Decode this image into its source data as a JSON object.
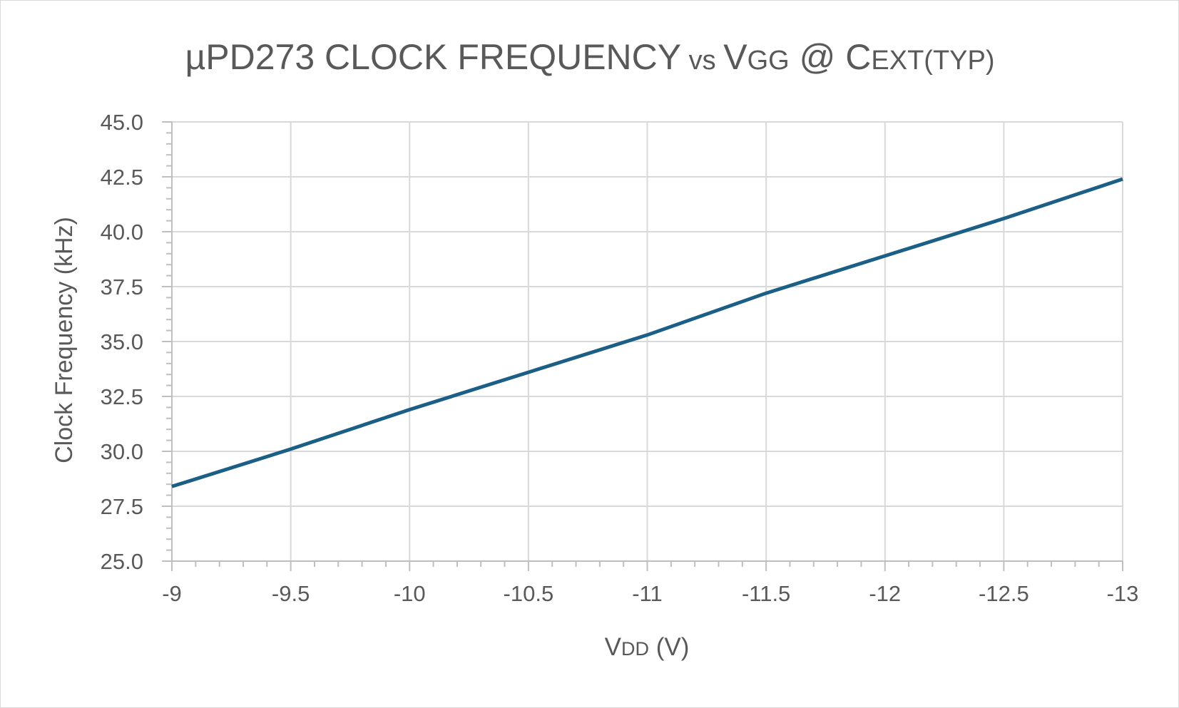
{
  "chart_data": {
    "type": "line",
    "title": {
      "parts": [
        {
          "text": "µPD273 CLOCK FREQUENCY",
          "size": "large"
        },
        {
          "text": " vs ",
          "size": "small"
        },
        {
          "text": "V",
          "size": "large"
        },
        {
          "text": "GG",
          "size": "small"
        },
        {
          "text": " @ ",
          "size": "large"
        },
        {
          "text": "C",
          "size": "large"
        },
        {
          "text": "EXT(TYP)",
          "size": "small"
        }
      ]
    },
    "xlabel": {
      "parts": [
        {
          "text": "V",
          "size": "large"
        },
        {
          "text": "DD",
          "size": "small"
        },
        {
          "text": " (V)",
          "size": "large"
        }
      ]
    },
    "ylabel": "Clock Frequency (kHz)",
    "xlim": [
      -9,
      -13
    ],
    "ylim": [
      25.0,
      45.0
    ],
    "x_ticks": [
      "-9",
      "-9.5",
      "-10",
      "-10.5",
      "-11",
      "-11.5",
      "-12",
      "-12.5",
      "-13"
    ],
    "y_ticks": [
      "25.0",
      "27.5",
      "30.0",
      "32.5",
      "35.0",
      "37.5",
      "40.0",
      "42.5",
      "45.0"
    ],
    "grid": true,
    "series": [
      {
        "color": "#1b5f86",
        "x": [
          -9,
          -9.5,
          -10,
          -10.5,
          -11,
          -11.5,
          -12,
          -12.5,
          -13
        ],
        "y": [
          28.4,
          30.1,
          31.9,
          33.6,
          35.3,
          37.2,
          38.9,
          40.6,
          42.4
        ]
      }
    ]
  }
}
